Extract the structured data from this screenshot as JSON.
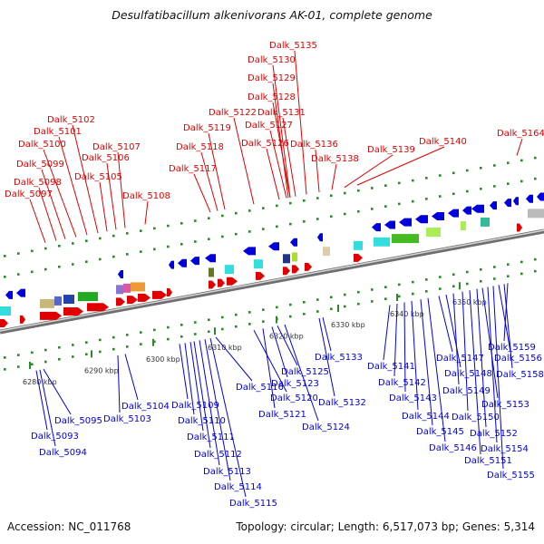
{
  "title": "Desulfatibacillum alkenivorans AK-01, complete genome",
  "footer": {
    "accession": "Accession: NC_011768",
    "topology": "Topology: circular; Length: 6,517,073 bp; Genes: 5,314"
  },
  "colors": {
    "forward": "#e00000",
    "reverse": "#0000dd",
    "backbone": "#888888",
    "tick": "#2a8a2a"
  },
  "ruler": [
    "6280 kbp",
    "6290 kbp",
    "6300 kbp",
    "6310 kbp",
    "6320 kbp",
    "6330 kbp",
    "6340 kbp",
    "6350 kbp"
  ],
  "forward_genes": [
    "Dalk_5097",
    "Dalk_5098",
    "Dalk_5099",
    "Dalk_5100",
    "Dalk_5101",
    "Dalk_5102",
    "Dalk_5105",
    "Dalk_5106",
    "Dalk_5107",
    "Dalk_5108",
    "Dalk_5117",
    "Dalk_5118",
    "Dalk_5119",
    "Dalk_5122",
    "Dalk_5126",
    "Dalk_5127",
    "Dalk_5131",
    "Dalk_5128",
    "Dalk_5129",
    "Dalk_5130",
    "Dalk_5135",
    "Dalk_5136",
    "Dalk_5138",
    "Dalk_5139",
    "Dalk_5140",
    "Dalk_5164"
  ],
  "reverse_genes": [
    "Dalk_5093",
    "Dalk_5094",
    "Dalk_5095",
    "Dalk_5103",
    "Dalk_5104",
    "Dalk_5109",
    "Dalk_5110",
    "Dalk_5111",
    "Dalk_5112",
    "Dalk_5113",
    "Dalk_5114",
    "Dalk_5115",
    "Dalk_5116",
    "Dalk_5120",
    "Dalk_5121",
    "Dalk_5123",
    "Dalk_5125",
    "Dalk_5124",
    "Dalk_5133",
    "Dalk_5132",
    "Dalk_5141",
    "Dalk_5142",
    "Dalk_5143",
    "Dalk_5144",
    "Dalk_5145",
    "Dalk_5146",
    "Dalk_5147",
    "Dalk_5148",
    "Dalk_5149",
    "Dalk_5150",
    "Dalk_5151",
    "Dalk_5152",
    "Dalk_5153",
    "Dalk_5154",
    "Dalk_5155",
    "Dalk_5156",
    "Dalk_5158",
    "Dalk_5159"
  ]
}
